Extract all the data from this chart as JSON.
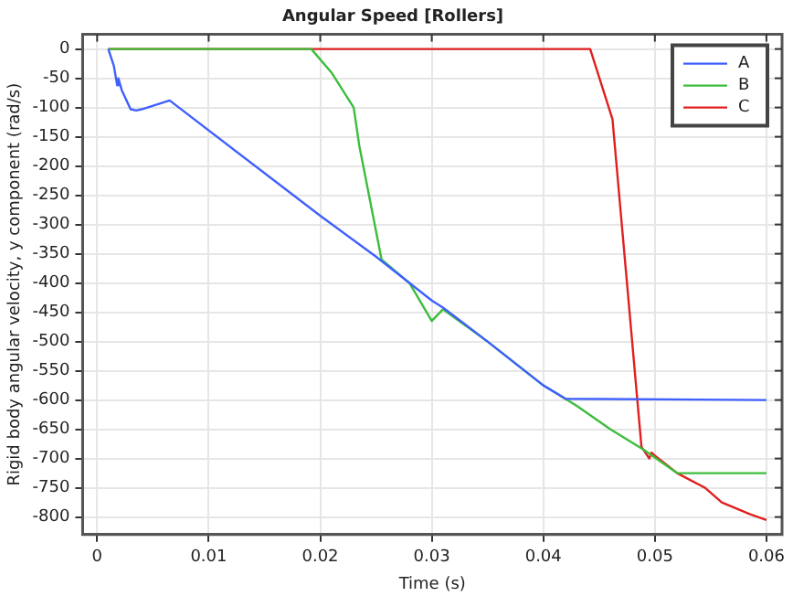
{
  "chart_data": {
    "type": "line",
    "title": "Angular Speed [Rollers]",
    "xlabel": "Time (s)",
    "ylabel": "Rigid body angular velocity, y component (rad/s)",
    "xlim": [
      -0.0013,
      0.0614
    ],
    "ylim": [
      -830,
      25
    ],
    "xticks": [
      0,
      0.01,
      0.02,
      0.03,
      0.04,
      0.05,
      0.06
    ],
    "yticks": [
      0,
      -50,
      -100,
      -150,
      -200,
      -250,
      -300,
      -350,
      -400,
      -450,
      -500,
      -550,
      -600,
      -650,
      -700,
      -750,
      -800
    ],
    "grid": true,
    "legend": "top right",
    "marker": "none",
    "line_style": "solid",
    "series": [
      {
        "name": "A",
        "color": "#3f5fff",
        "x": [
          0.001,
          0.0015,
          0.0018,
          0.0019,
          0.0022,
          0.003,
          0.0035,
          0.004,
          0.0065,
          0.02,
          0.025,
          0.03,
          0.031,
          0.035,
          0.04,
          0.042,
          0.06
        ],
        "values": [
          0,
          -29,
          -62,
          -50,
          -70,
          -103,
          -105,
          -103,
          -88,
          -285,
          -355,
          -430,
          -442,
          -500,
          -575,
          -598,
          -600
        ]
      },
      {
        "name": "B",
        "color": "#3cbd3c",
        "x": [
          0.001,
          0.0192,
          0.021,
          0.023,
          0.0235,
          0.0255,
          0.028,
          0.03,
          0.031,
          0.035,
          0.04,
          0.043,
          0.046,
          0.049,
          0.052,
          0.06
        ],
        "values": [
          0,
          0,
          -40,
          -100,
          -165,
          -360,
          -400,
          -465,
          -445,
          -500,
          -575,
          -610,
          -650,
          -685,
          -725,
          -725
        ]
      },
      {
        "name": "C",
        "color": "#e02020",
        "x": [
          0.001,
          0.0442,
          0.0462,
          0.0488,
          0.0495,
          0.0497,
          0.05,
          0.052,
          0.0545,
          0.056,
          0.0585,
          0.06
        ],
        "values": [
          0,
          0,
          -120,
          -680,
          -700,
          -690,
          -695,
          -725,
          -750,
          -775,
          -795,
          -805
        ]
      }
    ]
  }
}
